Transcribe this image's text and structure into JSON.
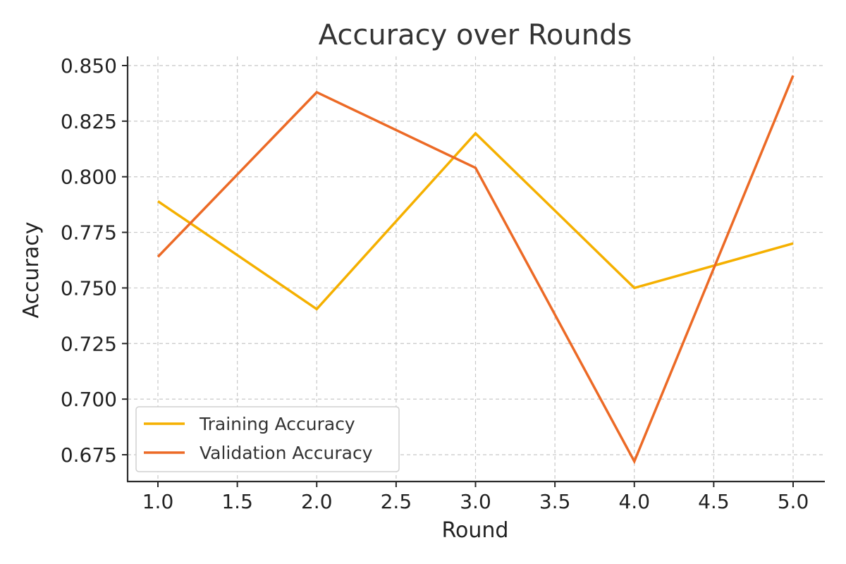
{
  "chart_data": {
    "type": "line",
    "title": "Accuracy over Rounds",
    "xlabel": "Round",
    "ylabel": "Accuracy",
    "x": [
      1,
      2,
      3,
      4,
      5
    ],
    "xlim": [
      0.8,
      5.2
    ],
    "ylim": [
      0.662,
      0.854
    ],
    "xticks": [
      1.0,
      1.5,
      2.0,
      2.5,
      3.0,
      3.5,
      4.0,
      4.5,
      5.0
    ],
    "xtick_labels": [
      "1.0",
      "1.5",
      "2.0",
      "2.5",
      "3.0",
      "3.5",
      "4.0",
      "4.5",
      "5.0"
    ],
    "yticks": [
      0.675,
      0.7,
      0.725,
      0.75,
      0.775,
      0.8,
      0.825,
      0.85
    ],
    "ytick_labels": [
      "0.675",
      "0.700",
      "0.725",
      "0.750",
      "0.775",
      "0.800",
      "0.825",
      "0.850"
    ],
    "grid": true,
    "legend_position": "lower-left",
    "series": [
      {
        "name": "Training Accuracy",
        "color": "#f5b000",
        "values": [
          0.789,
          0.7405,
          0.8195,
          0.75,
          0.77
        ]
      },
      {
        "name": "Validation Accuracy",
        "color": "#ec6a26",
        "values": [
          0.764,
          0.838,
          0.804,
          0.672,
          0.8455
        ]
      }
    ]
  }
}
